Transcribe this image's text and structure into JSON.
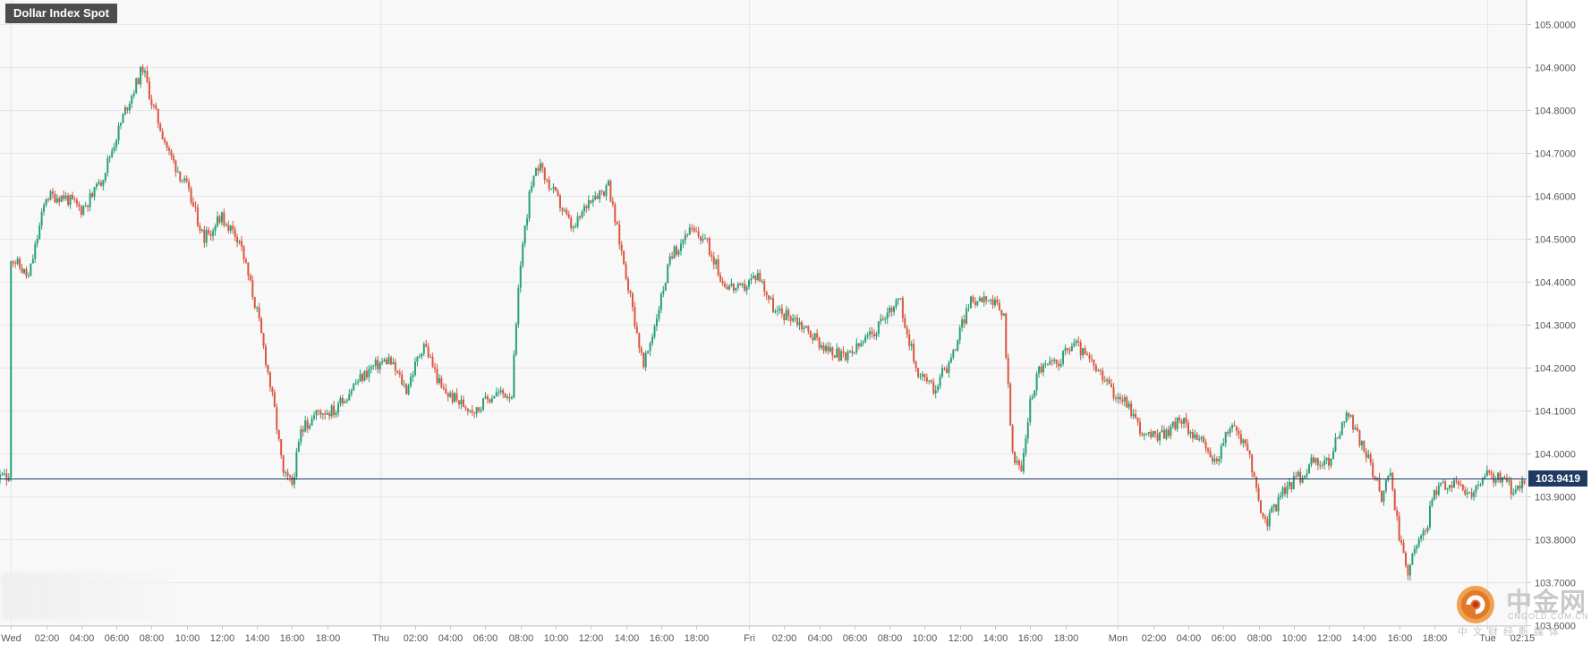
{
  "chart_data": {
    "type": "candlestick",
    "title": "Dollar Index Spot",
    "last_price": "103.9419",
    "last_price_value": 103.9419,
    "ylim": [
      103.5979,
      105.0565
    ],
    "y_ticks": [
      {
        "value": 105.0,
        "label": "105.0000"
      },
      {
        "value": 104.9,
        "label": "104.9000"
      },
      {
        "value": 104.8,
        "label": "104.8000"
      },
      {
        "value": 104.7,
        "label": "104.7000"
      },
      {
        "value": 104.6,
        "label": "104.6000"
      },
      {
        "value": 104.5,
        "label": "104.5000"
      },
      {
        "value": 104.4,
        "label": "104.4000"
      },
      {
        "value": 104.3,
        "label": "104.3000"
      },
      {
        "value": 104.2,
        "label": "104.2000"
      },
      {
        "value": 104.1,
        "label": "104.1000"
      },
      {
        "value": 104.0,
        "label": "104.0000"
      },
      {
        "value": 103.9,
        "label": "103.9000"
      },
      {
        "value": 103.8,
        "label": "103.8000"
      },
      {
        "value": 103.7,
        "label": "103.7000"
      },
      {
        "value": 103.6,
        "label": "103.6000"
      }
    ],
    "x_range": [
      -1.25,
      172.5
    ],
    "x_ticks": [
      {
        "x": 0,
        "label": "Wed",
        "day": true
      },
      {
        "x": 4,
        "label": "02:00"
      },
      {
        "x": 8,
        "label": "04:00"
      },
      {
        "x": 12,
        "label": "06:00"
      },
      {
        "x": 16,
        "label": "08:00"
      },
      {
        "x": 20,
        "label": "10:00"
      },
      {
        "x": 24,
        "label": "12:00"
      },
      {
        "x": 28,
        "label": "14:00"
      },
      {
        "x": 32,
        "label": "16:00"
      },
      {
        "x": 36,
        "label": "18:00"
      },
      {
        "x": 42,
        "label": "Thu",
        "day": true
      },
      {
        "x": 46,
        "label": "02:00"
      },
      {
        "x": 50,
        "label": "04:00"
      },
      {
        "x": 54,
        "label": "06:00"
      },
      {
        "x": 58,
        "label": "08:00"
      },
      {
        "x": 62,
        "label": "10:00"
      },
      {
        "x": 66,
        "label": "12:00"
      },
      {
        "x": 70,
        "label": "14:00"
      },
      {
        "x": 74,
        "label": "16:00"
      },
      {
        "x": 78,
        "label": "18:00"
      },
      {
        "x": 84,
        "label": "Fri",
        "day": true
      },
      {
        "x": 88,
        "label": "02:00"
      },
      {
        "x": 92,
        "label": "04:00"
      },
      {
        "x": 96,
        "label": "06:00"
      },
      {
        "x": 100,
        "label": "08:00"
      },
      {
        "x": 104,
        "label": "10:00"
      },
      {
        "x": 108,
        "label": "12:00"
      },
      {
        "x": 112,
        "label": "14:00"
      },
      {
        "x": 116,
        "label": "16:00"
      },
      {
        "x": 120,
        "label": "18:00"
      },
      {
        "x": 126,
        "label": "Mon",
        "day": true
      },
      {
        "x": 130,
        "label": "02:00"
      },
      {
        "x": 134,
        "label": "04:00"
      },
      {
        "x": 138,
        "label": "06:00"
      },
      {
        "x": 142,
        "label": "08:00"
      },
      {
        "x": 146,
        "label": "10:00"
      },
      {
        "x": 150,
        "label": "12:00"
      },
      {
        "x": 154,
        "label": "14:00"
      },
      {
        "x": 158,
        "label": "16:00"
      },
      {
        "x": 162,
        "label": "18:00"
      },
      {
        "x": 168,
        "label": "Tue",
        "day": true
      },
      {
        "x": 172,
        "label": "02:15",
        "current": true
      }
    ],
    "anchors": [
      [
        0,
        104.46
      ],
      [
        2,
        104.41
      ],
      [
        4,
        104.6
      ],
      [
        6,
        104.6
      ],
      [
        8,
        104.57
      ],
      [
        10,
        104.62
      ],
      [
        13,
        104.8
      ],
      [
        15,
        104.9
      ],
      [
        16,
        104.82
      ],
      [
        18,
        104.7
      ],
      [
        20,
        104.62
      ],
      [
        22,
        104.5
      ],
      [
        24,
        104.55
      ],
      [
        26,
        104.5
      ],
      [
        28,
        104.33
      ],
      [
        29,
        104.22
      ],
      [
        30,
        104.1
      ],
      [
        31,
        103.95
      ],
      [
        32,
        103.93
      ],
      [
        33,
        104.05
      ],
      [
        35,
        104.1
      ],
      [
        37,
        104.1
      ],
      [
        39,
        104.16
      ],
      [
        41,
        104.2
      ],
      [
        43,
        104.22
      ],
      [
        45,
        104.15
      ],
      [
        47,
        104.26
      ],
      [
        49,
        104.15
      ],
      [
        51,
        104.12
      ],
      [
        53,
        104.1
      ],
      [
        55,
        104.14
      ],
      [
        57,
        104.14
      ],
      [
        58,
        104.45
      ],
      [
        59,
        104.6
      ],
      [
        60,
        104.67
      ],
      [
        62,
        104.6
      ],
      [
        64,
        104.52
      ],
      [
        66,
        104.6
      ],
      [
        68,
        104.62
      ],
      [
        70,
        104.42
      ],
      [
        72,
        104.2
      ],
      [
        73,
        104.28
      ],
      [
        75,
        104.45
      ],
      [
        77,
        104.52
      ],
      [
        79,
        104.5
      ],
      [
        81,
        104.4
      ],
      [
        83,
        104.38
      ],
      [
        85,
        104.42
      ],
      [
        87,
        104.33
      ],
      [
        89,
        104.32
      ],
      [
        91,
        104.28
      ],
      [
        93,
        104.24
      ],
      [
        95,
        104.22
      ],
      [
        97,
        104.26
      ],
      [
        99,
        104.3
      ],
      [
        101,
        104.37
      ],
      [
        103,
        104.2
      ],
      [
        105,
        104.15
      ],
      [
        107,
        104.22
      ],
      [
        109,
        104.35
      ],
      [
        111,
        104.37
      ],
      [
        113,
        104.32
      ],
      [
        114,
        103.99
      ],
      [
        115,
        103.96
      ],
      [
        116,
        104.12
      ],
      [
        117,
        104.2
      ],
      [
        119,
        104.21
      ],
      [
        121,
        104.26
      ],
      [
        123,
        104.21
      ],
      [
        125,
        104.15
      ],
      [
        127,
        104.12
      ],
      [
        129,
        104.04
      ],
      [
        131,
        104.04
      ],
      [
        133,
        104.08
      ],
      [
        135,
        104.04
      ],
      [
        137,
        103.98
      ],
      [
        139,
        104.07
      ],
      [
        141,
        104.0
      ],
      [
        142,
        103.88
      ],
      [
        143,
        103.84
      ],
      [
        145,
        103.92
      ],
      [
        147,
        103.95
      ],
      [
        148,
        103.98
      ],
      [
        150,
        103.98
      ],
      [
        152,
        104.1
      ],
      [
        153,
        104.05
      ],
      [
        155,
        103.96
      ],
      [
        156,
        103.9
      ],
      [
        157,
        103.96
      ],
      [
        158,
        103.8
      ],
      [
        159,
        103.73
      ],
      [
        161,
        103.82
      ],
      [
        162,
        103.91
      ],
      [
        164,
        103.93
      ],
      [
        166,
        103.9
      ],
      [
        168,
        103.95
      ],
      [
        170,
        103.94
      ],
      [
        171,
        103.91
      ],
      [
        172,
        103.94
      ]
    ],
    "grid": true
  },
  "watermark": {
    "brand_cn": "中金网",
    "brand_url": "CNGOLD.COM.CN",
    "slogan": "中文财经新媒体"
  },
  "colors": {
    "up": "#26a078",
    "down": "#d9573f",
    "grid": "#e6e6e6",
    "axis": "#c8c8c8",
    "price_line": "#1f3b63",
    "label_bg": "#1f3b63"
  }
}
